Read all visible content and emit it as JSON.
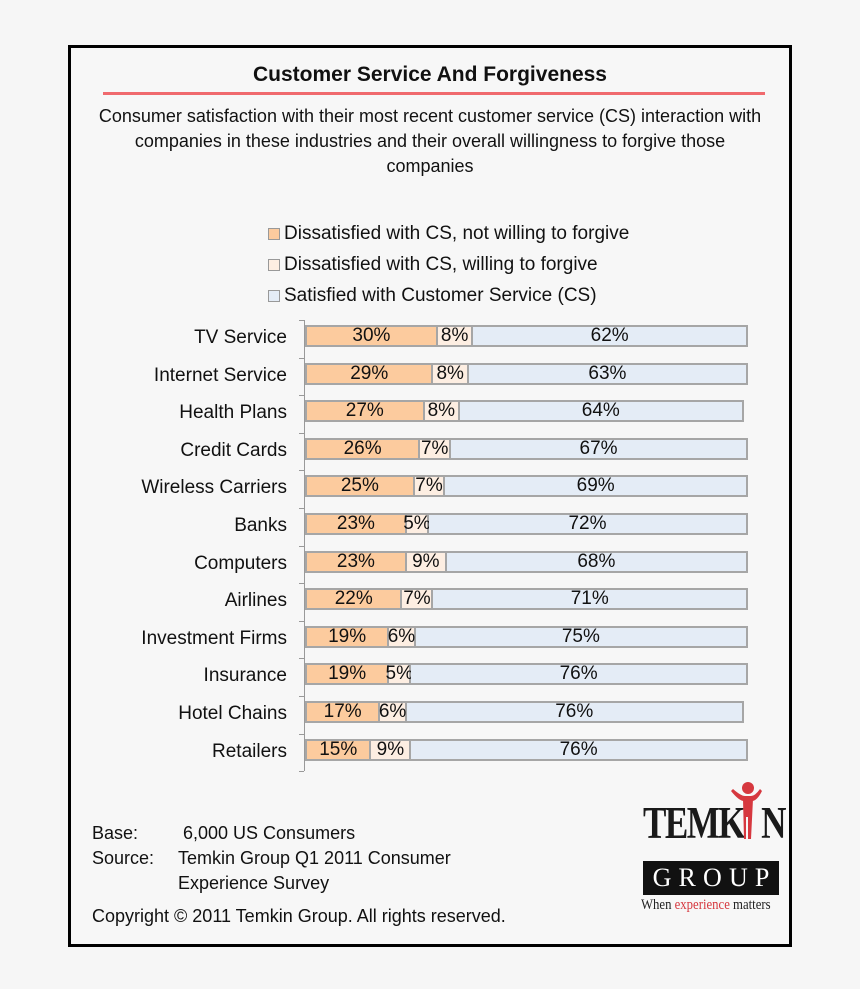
{
  "title": "Customer Service And Forgiveness",
  "subtitle": "Consumer satisfaction with their most recent customer service (CS) interaction with companies in these industries and their overall willingness to forgive those companies",
  "colors": {
    "not_forgive": "#fccb9e",
    "forgive": "#fdeee2",
    "satisfied": "#e4ecf6",
    "title_rule": "#f06a6e",
    "bar_border": "#a6a6a6",
    "logo_accent": "#d6383f"
  },
  "legend": [
    {
      "label": "Dissatisfied with CS, not willing to forgive",
      "color": "#fccb9e"
    },
    {
      "label": "Dissatisfied with CS, willing to forgive",
      "color": "#fdeee2"
    },
    {
      "label": "Satisfied with Customer Service (CS)",
      "color": "#e4ecf6"
    }
  ],
  "chart_data": {
    "type": "bar",
    "orientation": "horizontal",
    "stacked": true,
    "title": "Customer Service And Forgiveness",
    "subtitle": "Consumer satisfaction with their most recent customer service (CS) interaction with companies in these industries and their overall willingness to forgive those companies",
    "xlabel": "",
    "ylabel": "",
    "xlim": [
      0,
      100
    ],
    "grid": false,
    "legend_position": "top",
    "categories": [
      "TV Service",
      "Internet Service",
      "Health Plans",
      "Credit Cards",
      "Wireless Carriers",
      "Banks",
      "Computers",
      "Airlines",
      "Investment Firms",
      "Insurance",
      "Hotel Chains",
      "Retailers"
    ],
    "series": [
      {
        "name": "Dissatisfied with CS, not willing to forgive",
        "values": [
          30,
          29,
          27,
          26,
          25,
          23,
          23,
          22,
          19,
          19,
          17,
          15
        ]
      },
      {
        "name": "Dissatisfied with CS, willing to forgive",
        "values": [
          8,
          8,
          8,
          7,
          7,
          5,
          9,
          7,
          6,
          5,
          6,
          9
        ]
      },
      {
        "name": "Satisfied with Customer Service (CS)",
        "values": [
          62,
          63,
          64,
          67,
          69,
          72,
          68,
          71,
          75,
          76,
          76,
          76
        ]
      }
    ],
    "data_labels": true,
    "label_format": "{value}%"
  },
  "footer": {
    "base_key": "Base:",
    "base_value": "6,000 US Consumers",
    "source_key": "Source:",
    "source_line1": "Temkin Group Q1 2011 Consumer",
    "source_line2": "Experience Survey",
    "copyright": "Copyright © 2011 Temkin Group. All rights reserved."
  },
  "logo": {
    "word": "TEMKIN",
    "word_pre": "TEMK",
    "word_post": "N",
    "group": [
      "G",
      "R",
      "O",
      "U",
      "P"
    ],
    "tagline_pre": "When ",
    "tagline_accent": "experience",
    "tagline_post": " matters"
  }
}
